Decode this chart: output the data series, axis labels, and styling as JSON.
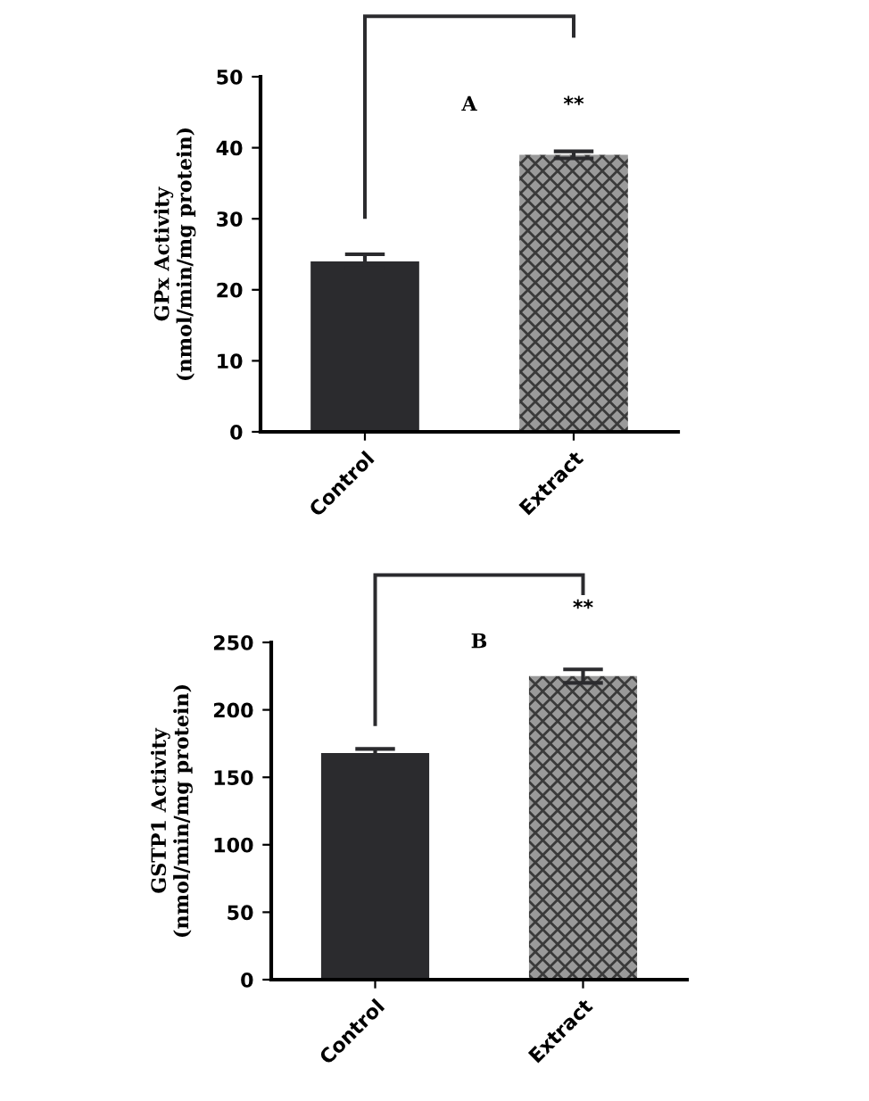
{
  "chart_data": [
    {
      "type": "bar",
      "categories": [
        "Control",
        "Extract"
      ],
      "values": [
        24,
        39
      ],
      "errors": [
        1,
        0.5
      ],
      "colors": [
        "#2b2b2e",
        "#9a9a9a"
      ],
      "ylabel": "GPx Activity\n(nmol/min/mg protein)",
      "ylim": [
        0,
        50
      ],
      "yticks": [
        0,
        10,
        20,
        30,
        40,
        50
      ],
      "grid": false,
      "annotations": [
        "A",
        "**"
      ]
    },
    {
      "type": "bar",
      "categories": [
        "Control",
        "Extract"
      ],
      "values": [
        168,
        225
      ],
      "errors": [
        3,
        5
      ],
      "colors": [
        "#2b2b2e",
        "#9a9a9a"
      ],
      "ylabel": "GSTP1 Activity\n(nmol/min/mg protein)",
      "ylim": [
        0,
        250
      ],
      "yticks": [
        0,
        50,
        100,
        150,
        200,
        250
      ],
      "grid": false,
      "annotations": [
        "B",
        "**"
      ]
    }
  ]
}
